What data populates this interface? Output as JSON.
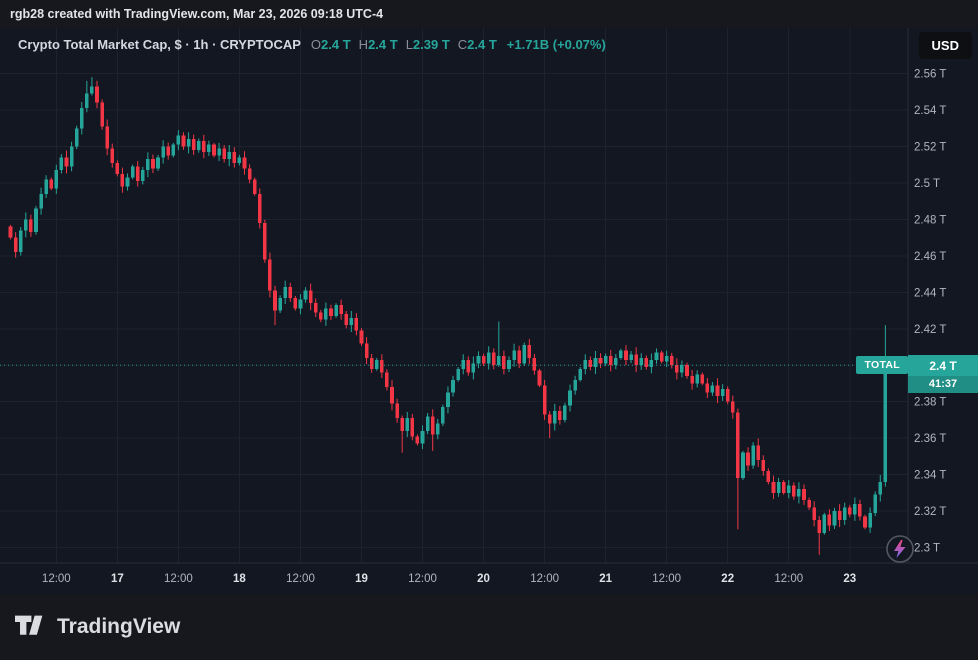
{
  "top_bar": {
    "text": "rgb28 created with TradingView.com, Mar 23, 2026 09:18 UTC-4"
  },
  "currency_button": {
    "label": "USD"
  },
  "price_label": {
    "symbol": "TOTAL",
    "price": "2.4 T",
    "countdown": "41:37"
  },
  "footer": {
    "brand": "TradingView"
  },
  "colors": {
    "bg_outer": "#17181d",
    "bg_chart": "#131722",
    "up": "#26a69a",
    "down": "#f23645",
    "grid": "#1e222d",
    "axis_border": "#2a2e39",
    "axis_text": "#b2b5be",
    "axis_text_major": "#e0e1e6",
    "text_main": "#e3e4e8",
    "text_dim": "#8b8f9b",
    "badge_teal": "#26a69a",
    "button_bg": "#0e0f13"
  },
  "chart_data": {
    "type": "candlestick",
    "title": "Crypto Total Market Cap, $ · 1h · CRYPTOCAP",
    "interval": "1h",
    "currency": "USD",
    "ohlc": {
      "o_label": "O",
      "o": "2.4 T",
      "h_label": "H",
      "h": "2.4 T",
      "l_label": "L",
      "l": "2.39 T",
      "c_label": "C",
      "c": "2.4 T",
      "change": "+1.71B (+0.07%)"
    },
    "current_price": 2.4,
    "open0": 2.476,
    "closes": [
      2.47,
      2.462,
      2.474,
      2.48,
      2.473,
      2.486,
      2.494,
      2.502,
      2.497,
      2.507,
      2.514,
      2.509,
      2.52,
      2.53,
      2.541,
      2.549,
      2.553,
      2.544,
      2.531,
      2.519,
      2.511,
      2.505,
      2.498,
      2.503,
      2.509,
      2.501,
      2.507,
      2.513,
      2.508,
      2.514,
      2.52,
      2.515,
      2.521,
      2.526,
      2.52,
      2.524,
      2.518,
      2.523,
      2.517,
      2.521,
      2.515,
      2.519,
      2.513,
      2.517,
      2.511,
      2.514,
      2.508,
      2.502,
      2.494,
      2.478,
      2.458,
      2.441,
      2.43,
      2.437,
      2.443,
      2.437,
      2.431,
      2.436,
      2.441,
      2.434,
      2.429,
      2.425,
      2.431,
      2.427,
      2.433,
      2.428,
      2.422,
      2.426,
      2.419,
      2.412,
      2.404,
      2.398,
      2.403,
      2.396,
      2.388,
      2.379,
      2.371,
      2.364,
      2.371,
      2.361,
      2.357,
      2.364,
      2.372,
      2.362,
      2.368,
      2.377,
      2.385,
      2.392,
      2.398,
      2.403,
      2.396,
      2.401,
      2.405,
      2.401,
      2.407,
      2.4,
      2.405,
      2.398,
      2.403,
      2.408,
      2.401,
      2.411,
      2.404,
      2.397,
      2.389,
      2.373,
      2.368,
      2.375,
      2.37,
      2.378,
      2.386,
      2.392,
      2.398,
      2.403,
      2.399,
      2.404,
      2.401,
      2.405,
      2.4,
      2.404,
      2.408,
      2.403,
      2.406,
      2.4,
      2.404,
      2.399,
      2.403,
      2.407,
      2.402,
      2.405,
      2.4,
      2.396,
      2.4,
      2.394,
      2.39,
      2.395,
      2.39,
      2.385,
      2.389,
      2.383,
      2.387,
      2.38,
      2.374,
      2.338,
      2.352,
      2.345,
      2.356,
      2.348,
      2.342,
      2.336,
      2.33,
      2.336,
      2.33,
      2.334,
      2.328,
      2.332,
      2.326,
      2.322,
      2.315,
      2.308,
      2.318,
      2.312,
      2.32,
      2.315,
      2.322,
      2.318,
      2.324,
      2.317,
      2.311,
      2.319,
      2.329,
      2.336,
      2.398,
      2.4
    ],
    "wick_overrides": {
      "15": {
        "h": 2.556
      },
      "16": {
        "h": 2.558
      },
      "52": {
        "l": 2.422
      },
      "77": {
        "l": 2.352
      },
      "83": {
        "l": 2.353
      },
      "96": {
        "h": 2.424
      },
      "106": {
        "l": 2.36
      },
      "143": {
        "l": 2.31
      },
      "159": {
        "l": 2.296
      },
      "172": {
        "h": 2.422
      }
    },
    "y_axis": {
      "ticks": [
        {
          "price": 2.56,
          "label": "2.56 T"
        },
        {
          "price": 2.54,
          "label": "2.54 T"
        },
        {
          "price": 2.52,
          "label": "2.52 T"
        },
        {
          "price": 2.5,
          "label": "2.5 T"
        },
        {
          "price": 2.48,
          "label": "2.48 T"
        },
        {
          "price": 2.46,
          "label": "2.46 T"
        },
        {
          "price": 2.44,
          "label": "2.44 T"
        },
        {
          "price": 2.42,
          "label": "2.42 T"
        },
        {
          "price": 2.4,
          "label": "2.4 T"
        },
        {
          "price": 2.38,
          "label": "2.38 T"
        },
        {
          "price": 2.36,
          "label": "2.36 T"
        },
        {
          "price": 2.34,
          "label": "2.34 T"
        },
        {
          "price": 2.32,
          "label": "2.32 T"
        },
        {
          "price": 2.3,
          "label": "2.3 T"
        }
      ]
    },
    "x_axis": {
      "labels": [
        {
          "index": 9,
          "text": "12:00",
          "major": false
        },
        {
          "index": 21,
          "text": "17",
          "major": true
        },
        {
          "index": 33,
          "text": "12:00",
          "major": false
        },
        {
          "index": 45,
          "text": "18",
          "major": true
        },
        {
          "index": 57,
          "text": "12:00",
          "major": false
        },
        {
          "index": 69,
          "text": "19",
          "major": true
        },
        {
          "index": 81,
          "text": "12:00",
          "major": false
        },
        {
          "index": 93,
          "text": "20",
          "major": true
        },
        {
          "index": 105,
          "text": "12:00",
          "major": false
        },
        {
          "index": 117,
          "text": "21",
          "major": true
        },
        {
          "index": 129,
          "text": "12:00",
          "major": false
        },
        {
          "index": 141,
          "text": "22",
          "major": true
        },
        {
          "index": 153,
          "text": "12:00",
          "major": false
        },
        {
          "index": 165,
          "text": "23",
          "major": true
        }
      ]
    }
  }
}
